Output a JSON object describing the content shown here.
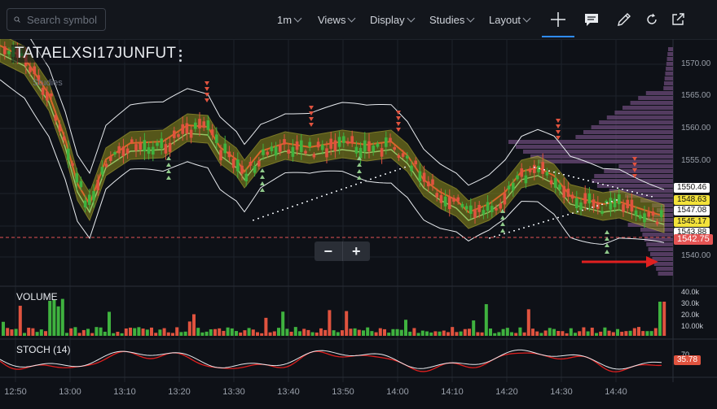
{
  "toolbar": {
    "search_placeholder": "Search symbol",
    "interval": "1m",
    "views": "Views",
    "display": "Display",
    "studies": "Studies",
    "layout": "Layout"
  },
  "chart": {
    "symbol": "TATAELXSI17JUNFUT",
    "studies_watermark": "Studies",
    "volume_label": "VOLUME",
    "stoch_label": "STOCH (14)",
    "price_axis": [
      "1570.00",
      "1565.00",
      "1560.00",
      "1555.00",
      "1540.00"
    ],
    "price_tags": [
      {
        "text": "1550.46",
        "bg": "#ffffff",
        "fg": "#111111"
      },
      {
        "text": "1548.63",
        "bg": "#f3e23a",
        "fg": "#111111"
      },
      {
        "text": "1547.08",
        "bg": "#ffffff",
        "fg": "#111111"
      },
      {
        "text": "1545.17",
        "bg": "#f3e23a",
        "fg": "#111111"
      },
      {
        "text": "1543.88",
        "bg": "#ffffff",
        "fg": "#111111"
      },
      {
        "text": "1542.75",
        "bg": "#e45454",
        "fg": "#ffffff"
      }
    ],
    "volume_axis": [
      "40.0k",
      "30.0k",
      "20.0k",
      "10.00k"
    ],
    "stoch_axis": [
      "70"
    ],
    "stoch_value": "35.78",
    "time_axis": [
      "12:50",
      "13:00",
      "13:10",
      "13:20",
      "13:30",
      "13:40",
      "13:50",
      "14:00",
      "14:10",
      "14:20",
      "14:30",
      "14:40"
    ],
    "colors": {
      "up": "#3fb23f",
      "down": "#e0533f",
      "band": "#8f8f1e",
      "profile": "#6b4a7a",
      "accent": "#2f8cff"
    }
  }
}
